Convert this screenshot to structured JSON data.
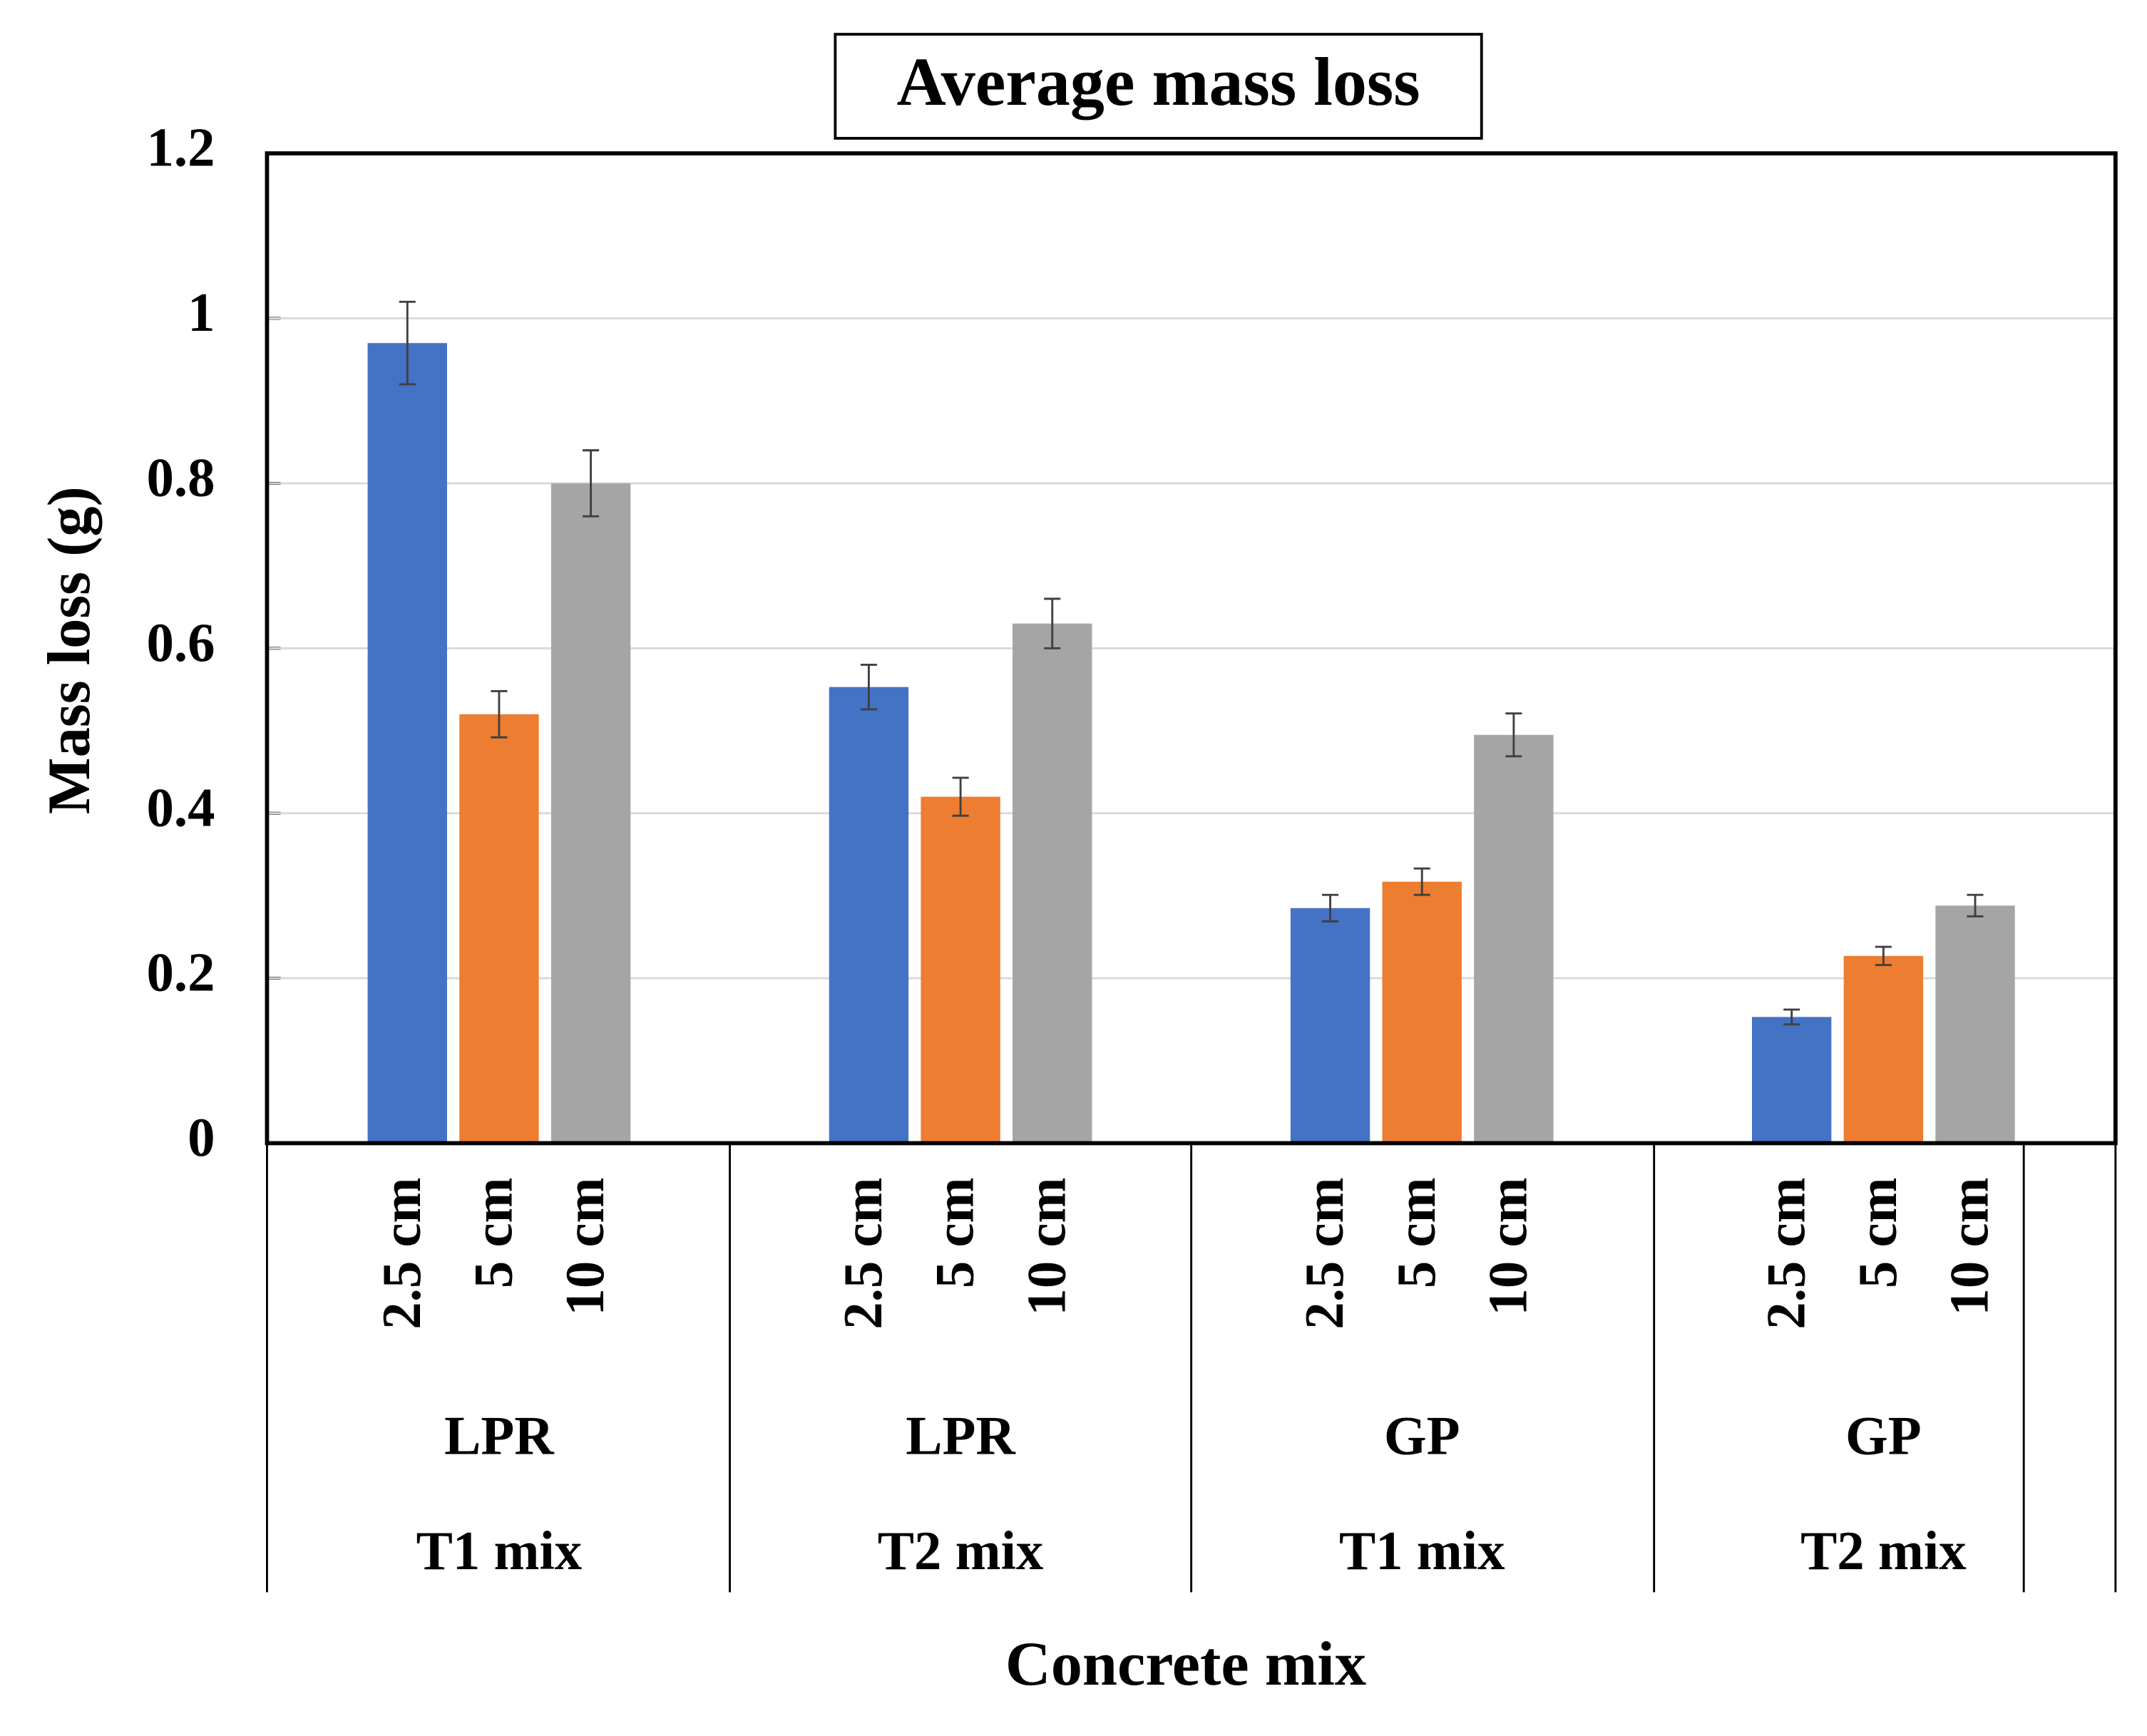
{
  "chart_data": {
    "type": "bar",
    "title": "Average mass loss",
    "y_label": "Mass loss (g)",
    "x_label": "Concrete mix",
    "categories": [
      "2.5 cm",
      "5 cm",
      "10 cm",
      "2.5 cm",
      "5 cm",
      "10 cm",
      "2.5 cm",
      "5 cm",
      "10 cm",
      "2.5 cm",
      "5 cm",
      "10 cm"
    ],
    "groups": [
      {
        "material": "LPR",
        "mix": "T1 mix"
      },
      {
        "material": "LPR",
        "mix": "T2 mix"
      },
      {
        "material": "GP",
        "mix": "T1 mix"
      },
      {
        "material": "GP",
        "mix": "T2 mix"
      }
    ],
    "values": [
      0.97,
      0.52,
      0.8,
      0.553,
      0.42,
      0.63,
      0.285,
      0.317,
      0.495,
      0.153,
      0.227,
      0.288
    ],
    "errors": [
      0.05,
      0.028,
      0.04,
      0.027,
      0.023,
      0.03,
      0.016,
      0.016,
      0.026,
      0.009,
      0.011,
      0.013
    ],
    "colors": [
      "#4472c4",
      "#ed7d31",
      "#a5a5a5"
    ],
    "ylim": [
      0,
      1.2
    ],
    "yticks": [
      0,
      0.2,
      0.4,
      0.6,
      0.8,
      1,
      1.2
    ],
    "grid": true
  }
}
